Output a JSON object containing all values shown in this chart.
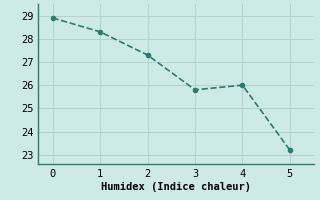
{
  "x": [
    0,
    1,
    2,
    3,
    4,
    5
  ],
  "y": [
    28.9,
    28.3,
    27.3,
    25.8,
    26.0,
    23.2
  ],
  "line_color": "#2d7a6e",
  "marker": "o",
  "marker_size": 3,
  "linewidth": 1.2,
  "linestyle": "--",
  "xlabel": "Humidex (Indice chaleur)",
  "xlabel_fontsize": 7.5,
  "background_color": "#ceeae4",
  "grid_color": "#b0d4cc",
  "spine_color": "#2d7a6e",
  "xlim": [
    -0.3,
    5.5
  ],
  "ylim": [
    22.6,
    29.5
  ],
  "yticks": [
    23,
    24,
    25,
    26,
    27,
    28,
    29
  ],
  "xticks": [
    0,
    1,
    2,
    3,
    4,
    5
  ],
  "tick_fontsize": 7.5
}
